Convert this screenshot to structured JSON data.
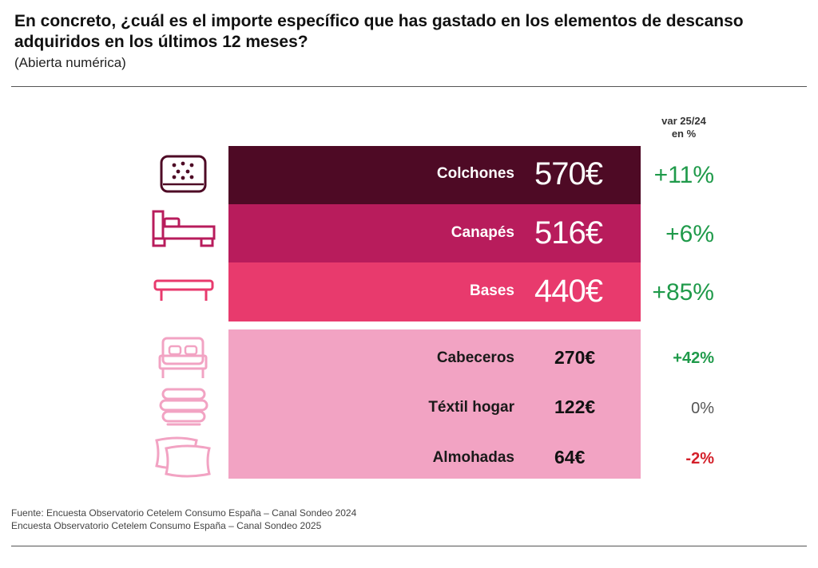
{
  "title": "En concreto, ¿cuál es el importe específico que has gastado en los elementos de descanso adquiridos en los últimos 12 meses?",
  "subtitle": "(Abierta numérica)",
  "var_header": [
    "var 25/24",
    "en %"
  ],
  "footer": [
    "Fuente: Encuesta Observatorio Cetelem Consumo España – Canal Sondeo 2024",
    "Encuesta Observatorio Cetelem Consumo España – Canal Sondeo 2025"
  ],
  "colors": {
    "colchones": "#4e0a25",
    "canapes": "#b81c5c",
    "bases": "#e83a6d",
    "light": "#f2a3c3",
    "icon_dark": "#4e0a25",
    "icon_mid": "#b81c5c",
    "icon_pink": "#e83a6d",
    "icon_light": "#f2a3c3",
    "positive": "#1f9a4a",
    "neutral": "#555555",
    "negative": "#d4202a"
  },
  "chart_data": {
    "type": "table",
    "unit": "€",
    "categories": [
      "Colchones",
      "Canapés",
      "Bases",
      "Cabeceros",
      "Téxtil hogar",
      "Almohadas"
    ],
    "values": [
      570,
      516,
      440,
      270,
      122,
      64
    ],
    "value_labels": [
      "570€",
      "516€",
      "440€",
      "270€",
      "122€",
      "64€"
    ],
    "variation_labels": [
      "+11%",
      "+6%",
      "+85%",
      "+42%",
      "0%",
      "-2%"
    ],
    "variation": [
      11,
      6,
      85,
      42,
      0,
      -2
    ],
    "icons": [
      "mattress-icon",
      "canape-bed-icon",
      "bed-base-icon",
      "headboard-bed-icon",
      "folded-textiles-icon",
      "pillows-icon"
    ]
  }
}
